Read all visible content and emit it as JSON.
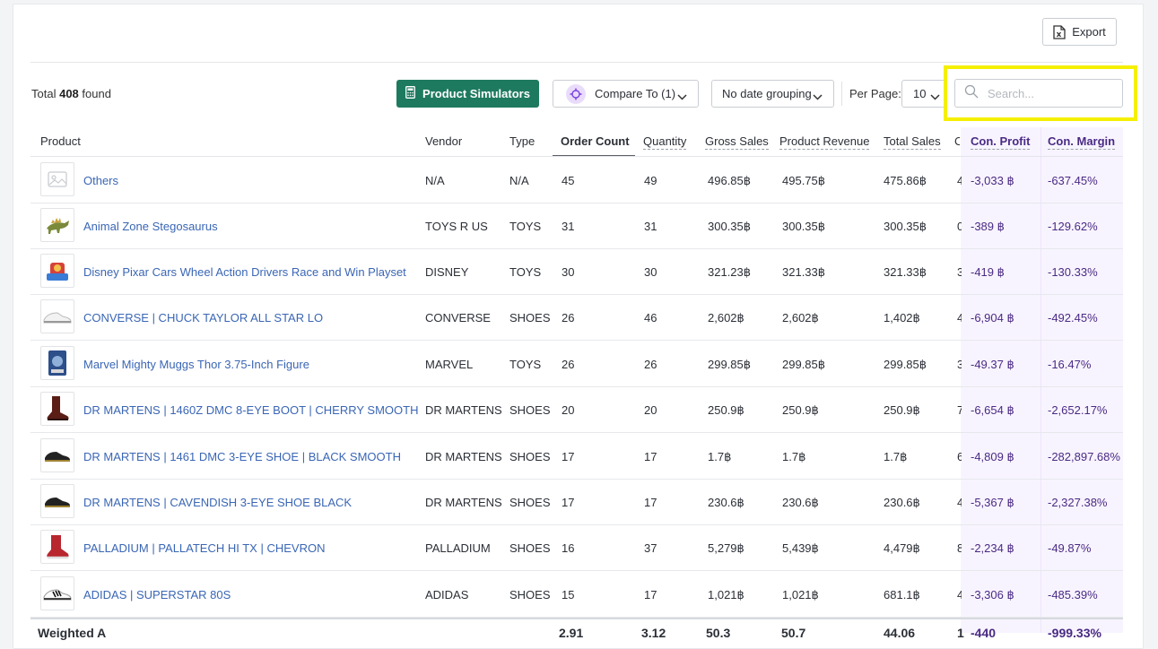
{
  "toolbar": {
    "export_label": "Export",
    "total_prefix": "Total",
    "total_count": "408",
    "total_suffix": "found",
    "simulators_label": "Product Simulators",
    "compare_label": "Compare To (1)",
    "date_grouping": "No date grouping",
    "per_page_label": "Per Page:",
    "per_page_value": "10",
    "search_placeholder": "Search..."
  },
  "table": {
    "headers": {
      "product": "Product",
      "vendor": "Vendor",
      "type": "Type",
      "order_count": "Order Count",
      "quantity": "Quantity",
      "gross_sales": "Gross Sales",
      "product_revenue": "Product Revenue",
      "total_sales": "Total Sales",
      "truncated": "C",
      "con_profit": "Con. Profit",
      "con_margin": "Con. Margin"
    },
    "rows": [
      {
        "product": "Others",
        "vendor": "N/A",
        "type": "N/A",
        "order_count": "45",
        "quantity": "49",
        "gross_sales": "496.85฿",
        "product_revenue": "495.75฿",
        "total_sales": "475.86฿",
        "truncated": "4",
        "con_profit": "-3,033 ฿",
        "con_margin": "-637.45%",
        "thumb": "placeholder-image-icon"
      },
      {
        "product": "Animal Zone Stegosaurus",
        "vendor": "TOYS R US",
        "type": "TOYS",
        "order_count": "31",
        "quantity": "31",
        "gross_sales": "300.35฿",
        "product_revenue": "300.35฿",
        "total_sales": "300.35฿",
        "truncated": "0",
        "con_profit": "-389 ฿",
        "con_margin": "-129.62%",
        "thumb": "dinosaur-toy"
      },
      {
        "product": "Disney Pixar Cars Wheel Action Drivers Race and Win Playset",
        "vendor": "DISNEY",
        "type": "TOYS",
        "order_count": "30",
        "quantity": "30",
        "gross_sales": "321.23฿",
        "product_revenue": "321.33฿",
        "total_sales": "321.33฿",
        "truncated": "3",
        "con_profit": "-419 ฿",
        "con_margin": "-130.33%",
        "thumb": "playset-toy"
      },
      {
        "product": "CONVERSE | CHUCK TAYLOR ALL STAR LO",
        "vendor": "CONVERSE",
        "type": "SHOES",
        "order_count": "26",
        "quantity": "46",
        "gross_sales": "2,602฿",
        "product_revenue": "2,602฿",
        "total_sales": "1,402฿",
        "truncated": "4",
        "con_profit": "-6,904 ฿",
        "con_margin": "-492.45%",
        "thumb": "white-sneaker"
      },
      {
        "product": "Marvel Mighty Muggs Thor 3.75-Inch Figure",
        "vendor": "MARVEL",
        "type": "TOYS",
        "order_count": "26",
        "quantity": "26",
        "gross_sales": "299.85฿",
        "product_revenue": "299.85฿",
        "total_sales": "299.85฿",
        "truncated": "3",
        "con_profit": "-49.37 ฿",
        "con_margin": "-16.47%",
        "thumb": "figure-box"
      },
      {
        "product": "DR MARTENS | 1460Z DMC 8-EYE BOOT | CHERRY SMOOTH",
        "vendor": "DR MARTENS",
        "type": "SHOES",
        "order_count": "20",
        "quantity": "20",
        "gross_sales": "250.9฿",
        "product_revenue": "250.9฿",
        "total_sales": "250.9฿",
        "truncated": "7",
        "con_profit": "-6,654 ฿",
        "con_margin": "-2,652.17%",
        "thumb": "cherry-boot"
      },
      {
        "product": "DR MARTENS | 1461 DMC 3-EYE SHOE | BLACK SMOOTH",
        "vendor": "DR MARTENS",
        "type": "SHOES",
        "order_count": "17",
        "quantity": "17",
        "gross_sales": "1.7฿",
        "product_revenue": "1.7฿",
        "total_sales": "1.7฿",
        "truncated": "6",
        "con_profit": "-4,809 ฿",
        "con_margin": "-282,897.68%",
        "thumb": "black-shoe"
      },
      {
        "product": "DR MARTENS | CAVENDISH 3-EYE SHOE BLACK",
        "vendor": "DR MARTENS",
        "type": "SHOES",
        "order_count": "17",
        "quantity": "17",
        "gross_sales": "230.6฿",
        "product_revenue": "230.6฿",
        "total_sales": "230.6฿",
        "truncated": "4",
        "con_profit": "-5,367 ฿",
        "con_margin": "-2,327.38%",
        "thumb": "black-shoe"
      },
      {
        "product": "PALLADIUM | PALLATECH HI TX | CHEVRON",
        "vendor": "PALLADIUM",
        "type": "SHOES",
        "order_count": "16",
        "quantity": "37",
        "gross_sales": "5,279฿",
        "product_revenue": "5,439฿",
        "total_sales": "4,479฿",
        "truncated": "8",
        "con_profit": "-2,234 ฿",
        "con_margin": "-49.87%",
        "thumb": "red-boot"
      },
      {
        "product": "ADIDAS | SUPERSTAR 80S",
        "vendor": "ADIDAS",
        "type": "SHOES",
        "order_count": "15",
        "quantity": "17",
        "gross_sales": "1,021฿",
        "product_revenue": "1,021฿",
        "total_sales": "681.1฿",
        "truncated": "4",
        "con_profit": "-3,306 ฿",
        "con_margin": "-485.39%",
        "thumb": "striped-sneaker"
      }
    ],
    "footer": {
      "label": "Weighted A",
      "order_count": "2.91",
      "quantity": "3.12",
      "gross_sales": "50.3",
      "product_revenue": "50.7",
      "total_sales": "44.06",
      "truncated": "1",
      "con_profit": "-440",
      "con_margin": "-999.33%"
    }
  },
  "colors": {
    "primary_green": "#1e7a5f",
    "link_blue": "#3a66b5",
    "purple_accent": "#4a2a84",
    "highlight_yellow": "#f5f000"
  }
}
